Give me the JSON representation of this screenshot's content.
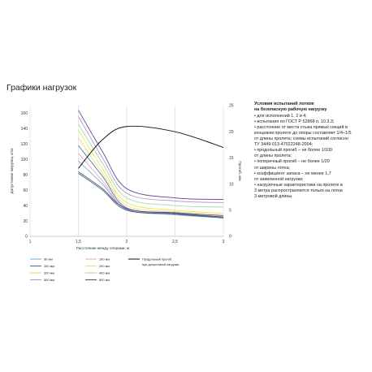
{
  "page": {
    "title": "Графики нагрузок"
  },
  "conditions": {
    "heading": "Условия испытаний лотков\nна безопасную рабочую нагрузку",
    "items": [
      "• для исполнений 1, 2 и 4;",
      "• испытания по ГОСТ Р 52868 п. 10.3.3;",
      "• расстояние от места стыка прямых секций в\nконцевом пролете до опоры составляет 1/4–1/5\nот длины пролета; схемы испытаний согласно\nТУ 3449-013-47022248-2004;",
      "• продольный прогиб – не более 1/100\nот длины пролета;",
      "• поперечный прогиб – не более 1/20\nот ширины лотка;",
      "• коэффициент запаса – не менее 1,7\nот заявленной нагрузки;",
      "• нагрузочные характеристики на пролете в\n3 метра распространяются только на лотки\n3-метровой длины."
    ]
  },
  "chart_data": {
    "type": "line",
    "xlabel": "Расстояние между опорами, м",
    "ylabel": "Допустимая нагрузка, кг/м",
    "ylabel_right": "Прогиб, мм",
    "x_ticks": [
      "1",
      "1,5",
      "2",
      "2,5",
      "3"
    ],
    "x_tick_values": [
      1,
      1.5,
      2,
      2.5,
      3
    ],
    "y_ticks": [
      0,
      20,
      40,
      60,
      80,
      100,
      120,
      140,
      160
    ],
    "y2_ticks": [
      0,
      5,
      10,
      15,
      20,
      25
    ],
    "xlim": [
      1,
      3
    ],
    "ylim": [
      0,
      170
    ],
    "y2lim": [
      0,
      25
    ],
    "grid": "vertical",
    "legend_position": "bottom",
    "series": [
      {
        "name": "50 мм",
        "color": "#6fa8dc",
        "axis": "left",
        "x": [
          1.5,
          1.75,
          2,
          2.5,
          3
        ],
        "y": [
          98,
          68,
          35,
          28,
          24
        ]
      },
      {
        "name": "100 мм",
        "color": "#f4a3a8",
        "axis": "left",
        "x": [
          1.5,
          1.75,
          2,
          2.5,
          3
        ],
        "y": [
          108,
          72,
          36,
          30,
          26
        ]
      },
      {
        "name": "150 мм",
        "color": "#3d6fb0",
        "axis": "left",
        "x": [
          1.5,
          1.75,
          2,
          2.5,
          3
        ],
        "y": [
          118,
          78,
          37,
          31,
          27
        ]
      },
      {
        "name": "200 мм",
        "color": "#f6d67a",
        "axis": "left",
        "x": [
          1.5,
          1.75,
          2,
          2.5,
          3
        ],
        "y": [
          128,
          82,
          40,
          32,
          28
        ]
      },
      {
        "name": "300 мм",
        "color": "#ede24a",
        "axis": "left",
        "x": [
          1.5,
          1.75,
          2,
          2.5,
          3
        ],
        "y": [
          138,
          88,
          44,
          34,
          30
        ]
      },
      {
        "name": "400 мм",
        "color": "#9ed6a8",
        "axis": "left",
        "x": [
          1.5,
          1.75,
          2,
          2.5,
          3
        ],
        "y": [
          146,
          95,
          50,
          40,
          38
        ]
      },
      {
        "name": "500 мм",
        "color": "#b48ed1",
        "axis": "left",
        "x": [
          1.5,
          1.75,
          2,
          2.5,
          3
        ],
        "y": [
          156,
          102,
          56,
          46,
          44
        ]
      },
      {
        "name": "600 мм",
        "color": "#5c3d8f",
        "axis": "left",
        "x": [
          1.5,
          1.75,
          2,
          2.5,
          3
        ],
        "y": [
          164,
          110,
          62,
          50,
          48
        ]
      },
      {
        "name": "",
        "color": "#3c4a7a",
        "axis": "left",
        "x": [
          1.5,
          1.75,
          2,
          2.5,
          3
        ],
        "y": [
          84,
          62,
          36,
          30,
          25
        ]
      },
      {
        "name": "",
        "color": "#4a5568",
        "axis": "left",
        "x": [
          1.5,
          1.75,
          2,
          2.5,
          3
        ],
        "y": [
          82,
          60,
          34,
          29,
          24
        ]
      },
      {
        "name": "Продольный прогиб\nпри допустимой нагрузке",
        "color": "#111111",
        "axis": "right",
        "x": [
          1.5,
          1.75,
          2,
          2.5,
          3
        ],
        "y": [
          13,
          18.5,
          21,
          20,
          17
        ]
      }
    ]
  }
}
